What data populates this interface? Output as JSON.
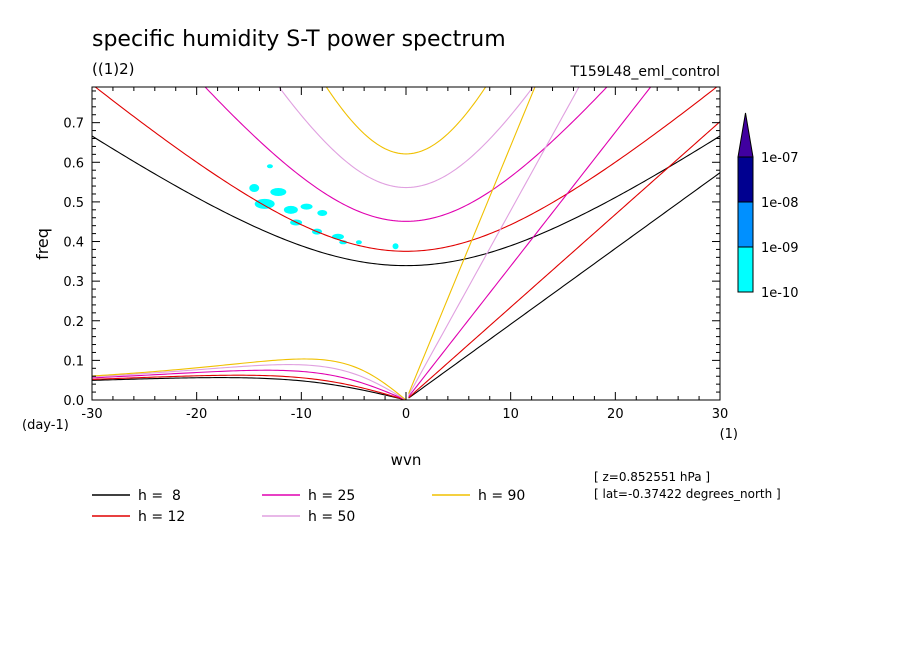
{
  "title": "specific humidity S-T power spectrum",
  "subtitle": "((1)2)",
  "run_name": "T159L48_eml_control",
  "meta": {
    "z_label": "[ z=0.852551 hPa ]",
    "lat_label": "[ lat=-0.37422 degrees_north ]"
  },
  "chart_data": {
    "type": "line",
    "xlabel": "wvn",
    "ylabel": "freq",
    "x_unit": "(1)",
    "y_unit": "(day-1)",
    "xlim": [
      -30,
      30
    ],
    "ylim": [
      0,
      0.79
    ],
    "x_ticks": [
      -30,
      -20,
      -10,
      0,
      10,
      20,
      30
    ],
    "y_ticks": [
      0.0,
      0.1,
      0.2,
      0.3,
      0.4,
      0.5,
      0.6,
      0.7
    ],
    "x_tick_labels": [
      "-30",
      "-20",
      "-10",
      "0",
      "10",
      "20",
      "30"
    ],
    "y_tick_labels": [
      "0.0",
      "0.1",
      "0.2",
      "0.3",
      "0.4",
      "0.5",
      "0.6",
      "0.7"
    ],
    "dispersion_curves": [
      {
        "name": "h =  8",
        "h": 8,
        "color": "#000000"
      },
      {
        "name": "h = 12",
        "h": 12,
        "color": "#e00000"
      },
      {
        "name": "h = 25",
        "h": 25,
        "color": "#e000b0"
      },
      {
        "name": "h = 50",
        "h": 50,
        "color": "#e0a0e0"
      },
      {
        "name": "h = 90",
        "h": 90,
        "color": "#f0c000"
      }
    ],
    "colorbar": {
      "labels": [
        "1e-07",
        "1e-08",
        "1e-09",
        "1e-10"
      ],
      "colors": [
        "#000090",
        "#0040d0",
        "#0090ff",
        "#00ffff"
      ],
      "triangle_color": "#4000a0"
    },
    "contour_fill_color": "#00ffff"
  }
}
